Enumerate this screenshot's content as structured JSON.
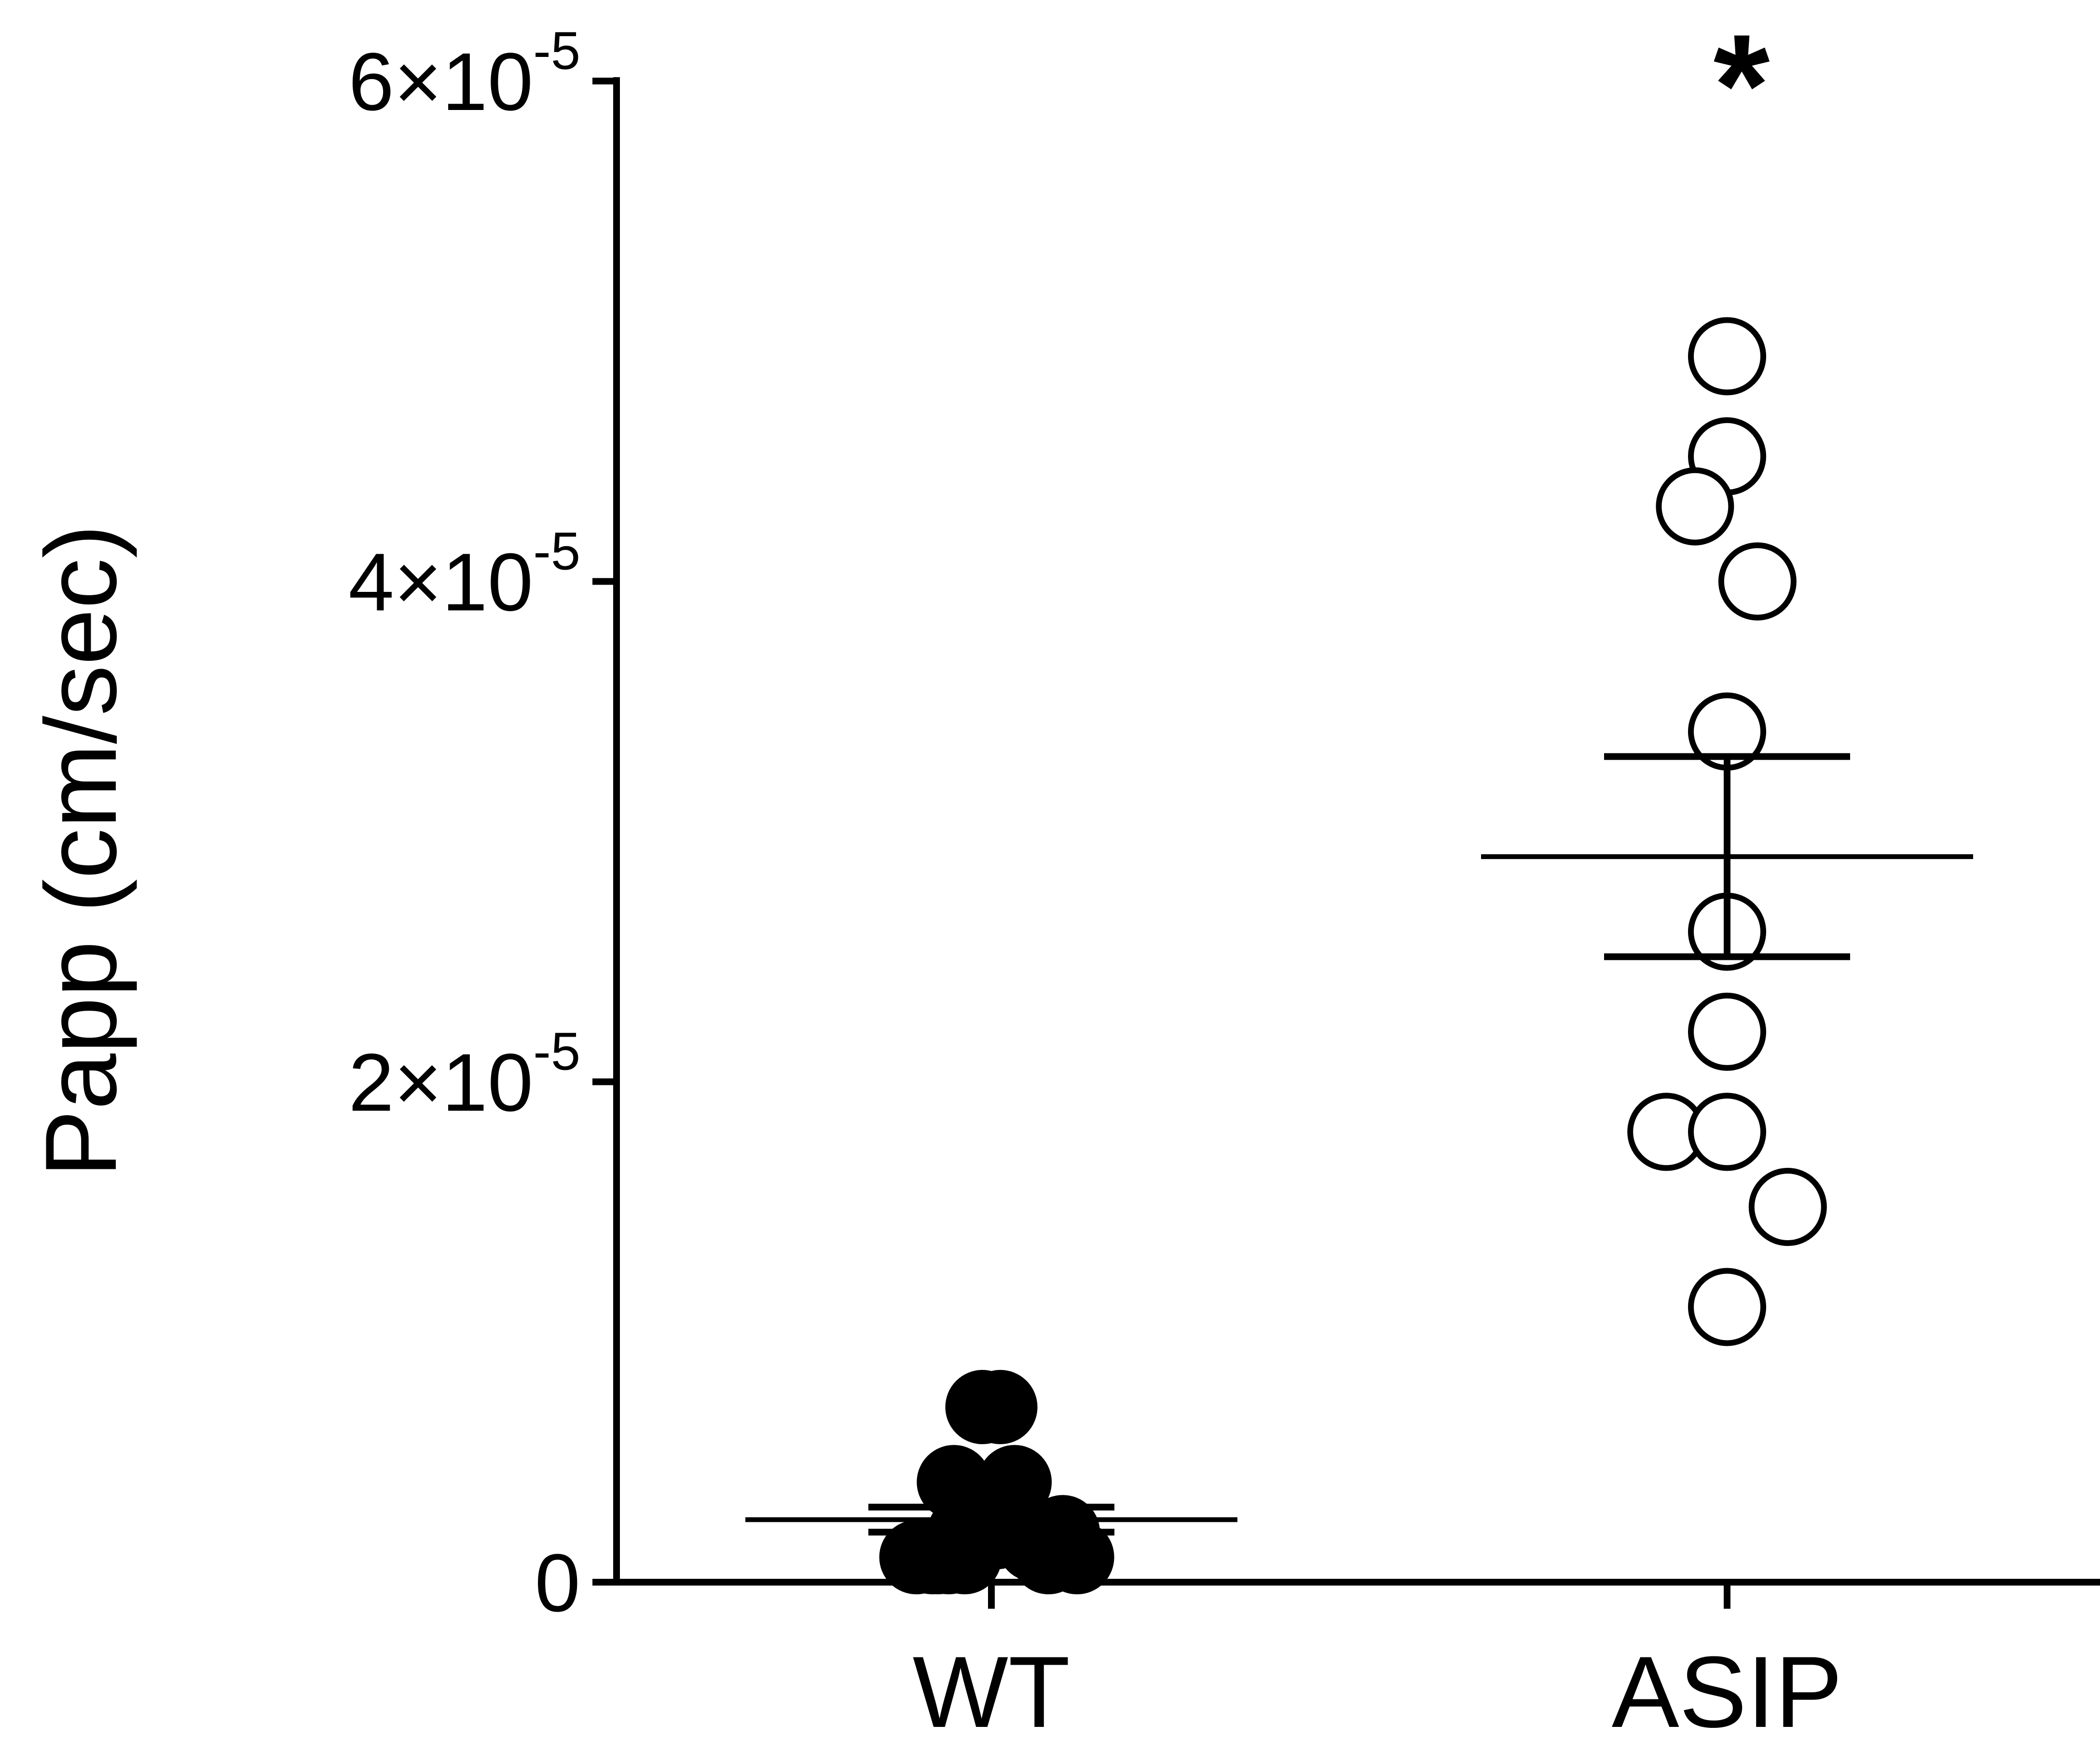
{
  "chart_data": {
    "type": "scatter",
    "ylabel": "Papp (cm/sec)",
    "ylim": [
      0,
      6e-05
    ],
    "yticks": [
      {
        "value": 0,
        "mantissa": "0",
        "exponent": ""
      },
      {
        "value": 2e-05,
        "mantissa": "2×10",
        "exponent": "-5"
      },
      {
        "value": 4e-05,
        "mantissa": "4×10",
        "exponent": "-5"
      },
      {
        "value": 6e-05,
        "mantissa": "6×10",
        "exponent": "-5"
      }
    ],
    "categories": [
      "WT",
      "ASIP"
    ],
    "series": [
      {
        "category": "WT",
        "marker": "filled-circle",
        "points": [
          {
            "offset": -0.42,
            "y": 1e-06
          },
          {
            "offset": -0.33,
            "y": 1e-06
          },
          {
            "offset": -0.24,
            "y": 1e-06
          },
          {
            "offset": -0.15,
            "y": 1e-06
          },
          {
            "offset": -0.21,
            "y": 4e-06
          },
          {
            "offset": -0.15,
            "y": 2e-06
          },
          {
            "offset": -0.06,
            "y": 2e-06
          },
          {
            "offset": 0.03,
            "y": 2e-06
          },
          {
            "offset": 0.13,
            "y": 2e-06
          },
          {
            "offset": -0.05,
            "y": 7e-06
          },
          {
            "offset": 0.05,
            "y": 7e-06
          },
          {
            "offset": 0.13,
            "y": 4e-06
          },
          {
            "offset": 0.24,
            "y": 1.5e-06
          },
          {
            "offset": 0.32,
            "y": 1e-06
          },
          {
            "offset": 0.4,
            "y": 2e-06
          },
          {
            "offset": 0.48,
            "y": 1e-06
          },
          {
            "offset": -0.3,
            "y": 1e-06
          }
        ],
        "mean": 2.5e-06,
        "sem": 5e-07
      },
      {
        "category": "ASIP",
        "marker": "open-circle",
        "points": [
          {
            "offset": 0.0,
            "y": 4.9e-05
          },
          {
            "offset": 0.0,
            "y": 4.5e-05
          },
          {
            "offset": -0.18,
            "y": 4.3e-05
          },
          {
            "offset": 0.17,
            "y": 4e-05
          },
          {
            "offset": 0.0,
            "y": 3.4e-05
          },
          {
            "offset": 0.0,
            "y": 2.6e-05
          },
          {
            "offset": 0.0,
            "y": 2.2e-05
          },
          {
            "offset": -0.34,
            "y": 1.8e-05
          },
          {
            "offset": 0.0,
            "y": 1.8e-05
          },
          {
            "offset": 0.34,
            "y": 1.5e-05
          },
          {
            "offset": 0.0,
            "y": 1.1e-05
          }
        ],
        "mean": 2.9e-05,
        "sem": 4e-06
      }
    ],
    "annotations": [
      {
        "category": "ASIP",
        "text": "*"
      }
    ],
    "grid": false,
    "legend": "none"
  },
  "colors": {
    "axis": "#000000",
    "marker": "#000000",
    "background": "#ffffff"
  }
}
